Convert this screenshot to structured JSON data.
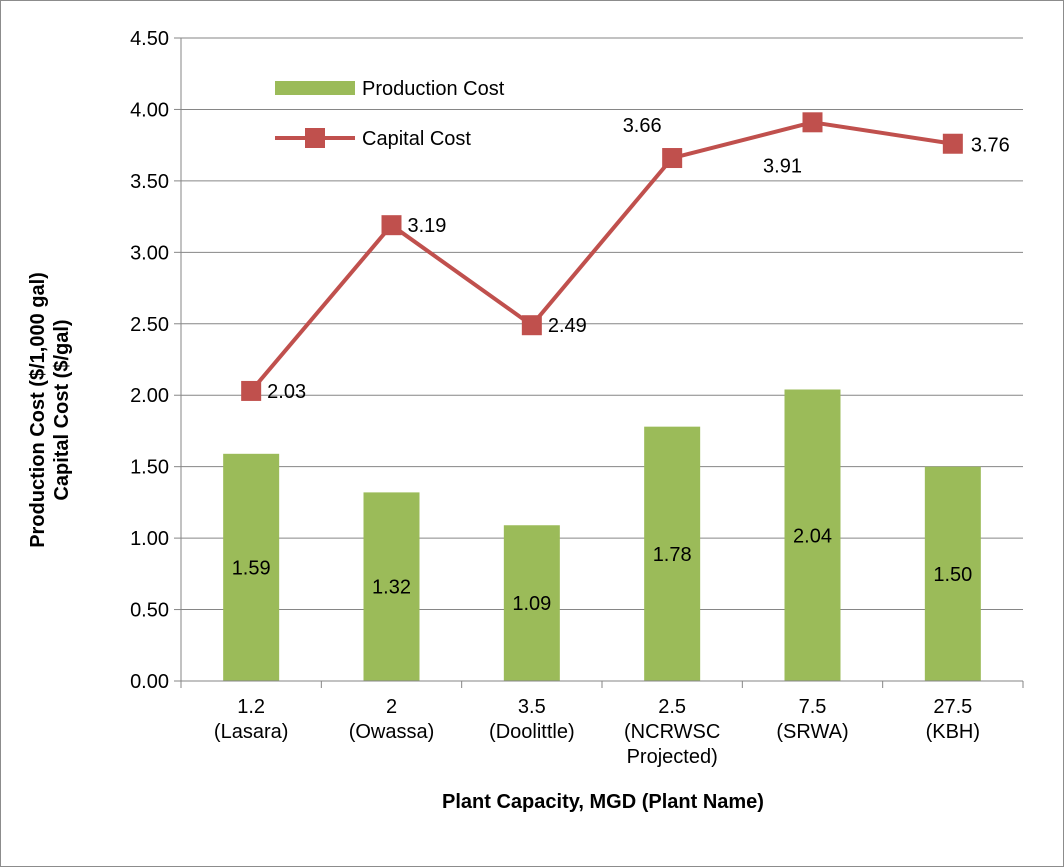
{
  "chart_data": {
    "type": "bar",
    "categories": [
      [
        "1.2",
        "(Lasara)"
      ],
      [
        "2",
        "(Owassa)"
      ],
      [
        "3.5",
        "(Doolittle)"
      ],
      [
        "2.5",
        "(NCRWSC",
        "Projected)"
      ],
      [
        "7.5",
        "(SRWA)"
      ],
      [
        "27.5",
        "(KBH)"
      ]
    ],
    "series": [
      {
        "name": "Production Cost",
        "type": "bar",
        "color": "#9bbb59",
        "values": [
          1.59,
          1.32,
          1.09,
          1.78,
          2.04,
          1.5
        ],
        "labels": [
          "1.59",
          "1.32",
          "1.09",
          "1.78",
          "2.04",
          "1.50"
        ]
      },
      {
        "name": "Capital Cost",
        "type": "line",
        "color": "#c0504d",
        "marker": "square",
        "values": [
          2.03,
          3.19,
          2.49,
          3.66,
          3.91,
          3.76
        ],
        "labels": [
          "2.03",
          "3.19",
          "2.49",
          "3.66",
          "3.91",
          "3.76"
        ]
      }
    ],
    "xlabel": "Plant Capacity, MGD (Plant Name)",
    "ylabel": [
      "Production Cost ($/1,000 gal)",
      "Capital Cost ($/gal)"
    ],
    "ylim": [
      0,
      4.5
    ],
    "yticks": [
      "0.00",
      "0.50",
      "1.00",
      "1.50",
      "2.00",
      "2.50",
      "3.00",
      "3.50",
      "4.00",
      "4.50"
    ],
    "grid": true,
    "legend": "top-left"
  }
}
